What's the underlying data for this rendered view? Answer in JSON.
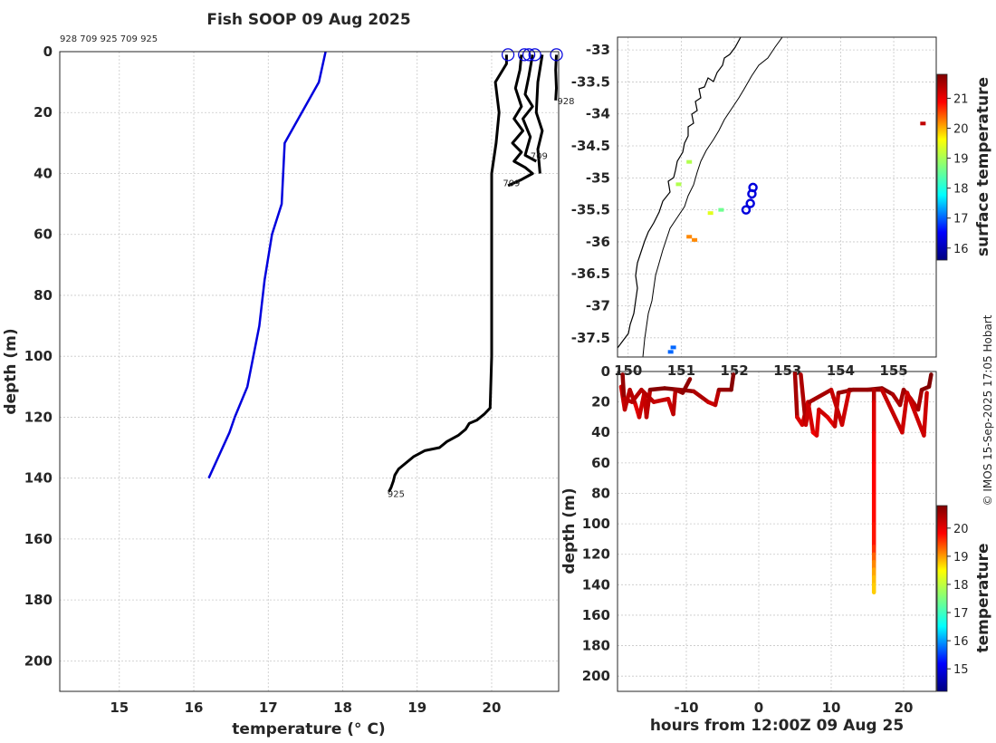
{
  "figure": {
    "title": "Fish SOOP 09 Aug 2025",
    "copyright": "© IMOS 15-Sep-2025 17:05 Hobart"
  },
  "chart_data": [
    {
      "type": "line",
      "panel": "profiles",
      "header_ids": "928 709 925 709 925",
      "xlabel": "temperature (° C)",
      "ylabel": "depth (m)",
      "xlim": [
        14.2,
        20.9
      ],
      "ylim": [
        210,
        0
      ],
      "xticks": [
        15,
        16,
        17,
        18,
        19,
        20
      ],
      "yticks": [
        0,
        20,
        40,
        60,
        80,
        100,
        120,
        140,
        160,
        180,
        200
      ],
      "grid": true,
      "series": [
        {
          "role": "climatology",
          "color": "#0000dd",
          "points": [
            [
              17.77,
              0
            ],
            [
              17.68,
              10
            ],
            [
              17.45,
              20
            ],
            [
              17.22,
              30
            ],
            [
              17.18,
              50
            ],
            [
              17.05,
              60
            ],
            [
              16.95,
              75
            ],
            [
              16.88,
              90
            ],
            [
              16.72,
              110
            ],
            [
              16.55,
              120
            ],
            [
              16.48,
              125
            ],
            [
              16.2,
              140
            ]
          ]
        },
        {
          "role": "profile",
          "id": "925",
          "color": "#000000",
          "points": [
            [
              20.2,
              1
            ],
            [
              20.2,
              4
            ],
            [
              20.05,
              10
            ],
            [
              20.1,
              20
            ],
            [
              20.06,
              30
            ],
            [
              20.0,
              40
            ],
            [
              20.0,
              60
            ],
            [
              20.0,
              100
            ],
            [
              19.98,
              117
            ],
            [
              19.9,
              119
            ],
            [
              19.8,
              121
            ],
            [
              19.7,
              122
            ],
            [
              19.65,
              124
            ],
            [
              19.55,
              126
            ],
            [
              19.4,
              128
            ],
            [
              19.3,
              130
            ],
            [
              19.1,
              131
            ],
            [
              18.95,
              133
            ],
            [
              18.85,
              135
            ],
            [
              18.75,
              137
            ],
            [
              18.7,
              139
            ],
            [
              18.68,
              141
            ],
            [
              18.65,
              143
            ],
            [
              18.62,
              144.5
            ]
          ]
        },
        {
          "role": "profile",
          "id": "709",
          "color": "#000000",
          "points": [
            [
              20.4,
              1
            ],
            [
              20.38,
              6
            ],
            [
              20.32,
              12
            ],
            [
              20.4,
              18
            ],
            [
              20.3,
              22
            ],
            [
              20.42,
              26
            ],
            [
              20.28,
              30
            ],
            [
              20.4,
              33
            ],
            [
              20.3,
              36
            ],
            [
              20.45,
              38
            ],
            [
              20.55,
              40
            ],
            [
              20.4,
              42
            ],
            [
              20.22,
              44
            ]
          ]
        },
        {
          "role": "profile",
          "id": "709",
          "color": "#000000",
          "points": [
            [
              20.55,
              1
            ],
            [
              20.5,
              8
            ],
            [
              20.45,
              14
            ],
            [
              20.55,
              18
            ],
            [
              20.42,
              22
            ],
            [
              20.52,
              28
            ],
            [
              20.45,
              34
            ],
            [
              20.6,
              36
            ]
          ]
        },
        {
          "role": "profile",
          "id": "925",
          "color": "#000000",
          "points": [
            [
              20.68,
              1
            ],
            [
              20.62,
              10
            ],
            [
              20.6,
              20
            ],
            [
              20.68,
              26
            ],
            [
              20.62,
              32
            ],
            [
              20.65,
              40
            ]
          ]
        },
        {
          "role": "profile",
          "id": "928",
          "color": "#000000",
          "points": [
            [
              20.87,
              1
            ],
            [
              20.86,
              6
            ],
            [
              20.87,
              12
            ],
            [
              20.86,
              16
            ]
          ]
        }
      ],
      "start_markers": [
        20.22,
        20.44,
        20.5,
        20.58,
        20.87
      ],
      "annotations": [
        {
          "text": "928",
          "x": 20.88,
          "y": 16
        },
        {
          "text": "709",
          "x": 20.52,
          "y": 34
        },
        {
          "text": "709",
          "x": 20.15,
          "y": 43
        },
        {
          "text": "925",
          "x": 18.6,
          "y": 145
        }
      ]
    },
    {
      "type": "scatter",
      "panel": "map",
      "xlim": [
        149.8,
        155.8
      ],
      "ylim": [
        -37.8,
        -32.8
      ],
      "xticks": [
        150,
        151,
        152,
        153,
        154,
        155
      ],
      "yticks": [
        -33,
        -33.5,
        -34,
        -34.5,
        -35,
        -35.5,
        -36,
        -36.5,
        -37,
        -37.5
      ],
      "grid": true,
      "colorbar": {
        "label": "surface temperature",
        "range": [
          15.6,
          21.8
        ],
        "ticks": [
          16,
          17,
          18,
          19,
          20,
          21
        ]
      },
      "points": [
        {
          "lon": 155.55,
          "lat": -34.15,
          "temp": 21.4
        },
        {
          "lon": 150.95,
          "lat": -35.1,
          "temp": 19.0
        },
        {
          "lon": 151.15,
          "lat": -34.75,
          "temp": 19.0
        },
        {
          "lon": 151.75,
          "lat": -35.5,
          "temp": 18.6
        },
        {
          "lon": 151.55,
          "lat": -35.55,
          "temp": 19.3
        },
        {
          "lon": 151.15,
          "lat": -35.92,
          "temp": 20.2
        },
        {
          "lon": 151.25,
          "lat": -35.97,
          "temp": 20.2
        },
        {
          "lon": 150.8,
          "lat": -37.72,
          "temp": 17.0
        },
        {
          "lon": 150.85,
          "lat": -37.65,
          "temp": 17.0
        }
      ],
      "deployments": [
        {
          "lon": 152.35,
          "lat": -35.15
        },
        {
          "lon": 152.33,
          "lat": -35.25
        },
        {
          "lon": 152.3,
          "lat": -35.4
        },
        {
          "lon": 152.22,
          "lat": -35.5
        }
      ]
    },
    {
      "type": "scatter",
      "panel": "time-depth",
      "xlabel": "hours from 12:00Z 09 Aug 25",
      "ylabel": "depth (m)",
      "xlim": [
        -19.5,
        24.5
      ],
      "ylim": [
        210,
        0
      ],
      "xticks": [
        -10,
        0,
        10,
        20
      ],
      "yticks": [
        0,
        20,
        40,
        60,
        80,
        100,
        120,
        140,
        160,
        180,
        200
      ],
      "grid": true,
      "colorbar": {
        "label": "temperature",
        "range": [
          14.2,
          20.8
        ],
        "ticks": [
          15,
          16,
          17,
          18,
          19,
          20
        ]
      },
      "tracks": [
        {
          "points": [
            [
              -19,
              10,
              20.4
            ],
            [
              -18.5,
              25,
              20.2
            ],
            [
              -17.8,
              12,
              20.6
            ],
            [
              -17,
              22,
              20.3
            ],
            [
              -16.5,
              30,
              20.0
            ],
            [
              -15.8,
              14,
              20.6
            ],
            [
              -15.5,
              30,
              20.1
            ],
            [
              -15,
              12,
              20.7
            ],
            [
              -13,
              11,
              20.8
            ],
            [
              -11,
              12,
              20.7
            ],
            [
              -9,
              13,
              20.6
            ],
            [
              -7,
              20,
              20.4
            ],
            [
              -6,
              22,
              20.2
            ],
            [
              -5.5,
              12,
              20.6
            ],
            [
              -3.8,
              12,
              20.7
            ],
            [
              -3.5,
              2,
              20.8
            ]
          ]
        },
        {
          "points": [
            [
              -18.8,
              2,
              20.8
            ],
            [
              -18.6,
              18,
              20.5
            ],
            [
              -17.5,
              20,
              20.3
            ],
            [
              -16.2,
              12,
              20.6
            ],
            [
              -14.5,
              20,
              20.3
            ],
            [
              -12.5,
              18,
              20.4
            ],
            [
              -11.8,
              28,
              20.2
            ],
            [
              -11.5,
              12,
              20.6
            ],
            [
              -10.5,
              14,
              20.6
            ],
            [
              -9.5,
              5,
              20.8
            ]
          ]
        },
        {
          "points": [
            [
              5,
              1,
              20.8
            ],
            [
              5.3,
              30,
              20.3
            ],
            [
              6,
              35,
              20.1
            ],
            [
              6.8,
              20,
              20.4
            ],
            [
              7.5,
              40,
              20.1
            ],
            [
              8,
              42,
              20.0
            ],
            [
              8.3,
              25,
              20.4
            ],
            [
              9.5,
              30,
              20.2
            ],
            [
              10.5,
              36,
              20.1
            ],
            [
              11,
              14,
              20.6
            ],
            [
              13,
              12,
              20.7
            ],
            [
              15,
              12,
              20.8
            ],
            [
              17,
              11,
              20.8
            ],
            [
              18.5,
              15,
              20.6
            ],
            [
              19.5,
              22,
              20.4
            ],
            [
              20,
              12,
              20.7
            ],
            [
              21,
              18,
              20.5
            ],
            [
              22,
              25,
              20.4
            ],
            [
              22.5,
              12,
              20.7
            ],
            [
              23.5,
              10,
              20.8
            ],
            [
              23.8,
              2,
              20.8
            ]
          ]
        },
        {
          "points": [
            [
              5.8,
              2,
              20.8
            ],
            [
              6.5,
              35,
              20.2
            ],
            [
              7,
              20,
              20.4
            ],
            [
              10,
              12,
              20.7
            ],
            [
              11.5,
              35,
              20.0
            ],
            [
              12.5,
              12,
              20.6
            ],
            [
              17,
              12,
              20.7
            ],
            [
              19.8,
              40,
              20.0
            ],
            [
              20.5,
              14,
              20.6
            ],
            [
              22.8,
              42,
              20.0
            ],
            [
              23.2,
              14,
              20.6
            ]
          ]
        },
        {
          "points": [
            [
              15.9,
              12,
              20.6
            ],
            [
              15.9,
              20,
              20.3
            ],
            [
              15.9,
              40,
              20.1
            ],
            [
              15.9,
              60,
              20.0
            ],
            [
              15.9,
              80,
              19.95
            ],
            [
              15.9,
              100,
              19.9
            ],
            [
              15.9,
              115,
              19.8
            ],
            [
              15.9,
              120,
              19.5
            ],
            [
              15.9,
              125,
              19.2
            ],
            [
              15.9,
              130,
              19.0
            ],
            [
              15.9,
              135,
              18.8
            ],
            [
              15.9,
              140,
              18.7
            ],
            [
              15.9,
              145,
              18.6
            ]
          ]
        }
      ]
    }
  ]
}
